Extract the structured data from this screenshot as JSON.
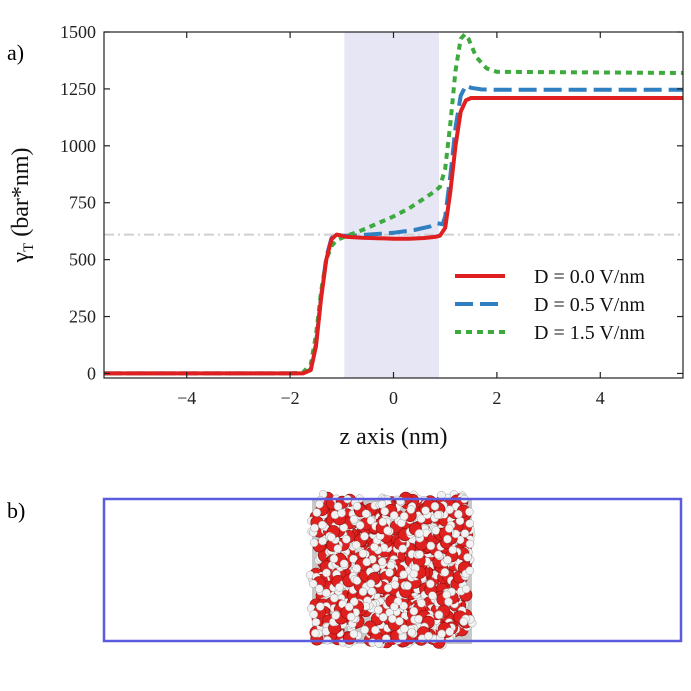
{
  "panel_a_label": "a)",
  "panel_b_label": "b)",
  "colors": {
    "D0": "#e02020",
    "D05": "#2f7fc1",
    "D15": "#3caa3c",
    "shade": "#e6e6f5",
    "reference": "#d0d0d0",
    "box": "#5b5be0",
    "oxygen": "#e0201e",
    "hydrogen": "#f2f2f2"
  },
  "chart_data": {
    "type": "line",
    "title": "",
    "xlabel": "z axis (nm)",
    "ylabel_main": "γ",
    "ylabel_sub": "T",
    "ylabel_rest": " (bar*nm)",
    "xlim": [
      -5.6,
      5.6
    ],
    "ylim": [
      -20,
      1500
    ],
    "xticks": [
      -4,
      -2,
      0,
      2,
      4
    ],
    "xtick_labels": [
      "−4",
      "−2",
      "0",
      "2",
      "4"
    ],
    "yticks": [
      0,
      250,
      500,
      750,
      1000,
      1250,
      1500
    ],
    "ytick_labels": [
      "0",
      "250",
      "500",
      "750",
      "1000",
      "1250",
      "1500"
    ],
    "shaded_region": [
      -0.95,
      0.88
    ],
    "reference_line_y": 610,
    "legend_position": "right-middle",
    "series": [
      {
        "name": "D = 0.0 V/nm",
        "key": "D0",
        "style": "solid",
        "points": [
          [
            -5.6,
            0
          ],
          [
            -2.0,
            0
          ],
          [
            -1.75,
            0
          ],
          [
            -1.6,
            15
          ],
          [
            -1.5,
            120
          ],
          [
            -1.4,
            330
          ],
          [
            -1.3,
            500
          ],
          [
            -1.2,
            590
          ],
          [
            -1.1,
            610
          ],
          [
            -1.0,
            605
          ],
          [
            -0.9,
            600
          ],
          [
            -0.6,
            596
          ],
          [
            -0.3,
            594
          ],
          [
            0.0,
            592
          ],
          [
            0.3,
            592
          ],
          [
            0.6,
            595
          ],
          [
            0.8,
            600
          ],
          [
            0.9,
            605
          ],
          [
            1.0,
            640
          ],
          [
            1.1,
            800
          ],
          [
            1.2,
            1000
          ],
          [
            1.3,
            1150
          ],
          [
            1.4,
            1200
          ],
          [
            1.5,
            1210
          ],
          [
            2.0,
            1210
          ],
          [
            5.6,
            1210
          ]
        ]
      },
      {
        "name": "D = 0.5 V/nm",
        "key": "D05",
        "style": "dashed",
        "points": [
          [
            -5.6,
            0
          ],
          [
            -2.0,
            0
          ],
          [
            -1.75,
            0
          ],
          [
            -1.6,
            18
          ],
          [
            -1.5,
            130
          ],
          [
            -1.4,
            340
          ],
          [
            -1.3,
            510
          ],
          [
            -1.2,
            595
          ],
          [
            -1.1,
            612
          ],
          [
            -1.0,
            605
          ],
          [
            -0.8,
            605
          ],
          [
            -0.5,
            610
          ],
          [
            0.0,
            618
          ],
          [
            0.4,
            630
          ],
          [
            0.7,
            645
          ],
          [
            0.85,
            660
          ],
          [
            0.95,
            655
          ],
          [
            1.0,
            690
          ],
          [
            1.1,
            870
          ],
          [
            1.2,
            1080
          ],
          [
            1.3,
            1220
          ],
          [
            1.4,
            1265
          ],
          [
            1.5,
            1255
          ],
          [
            1.7,
            1248
          ],
          [
            2.0,
            1246
          ],
          [
            5.6,
            1246
          ]
        ]
      },
      {
        "name": "D = 1.5 V/nm",
        "key": "D15",
        "style": "dotted",
        "points": [
          [
            -5.6,
            0
          ],
          [
            -2.0,
            0
          ],
          [
            -1.75,
            5
          ],
          [
            -1.6,
            40
          ],
          [
            -1.5,
            170
          ],
          [
            -1.4,
            360
          ],
          [
            -1.3,
            500
          ],
          [
            -1.2,
            560
          ],
          [
            -1.1,
            585
          ],
          [
            -0.9,
            605
          ],
          [
            -0.6,
            630
          ],
          [
            -0.3,
            660
          ],
          [
            0.0,
            690
          ],
          [
            0.3,
            725
          ],
          [
            0.6,
            770
          ],
          [
            0.8,
            800
          ],
          [
            0.9,
            820
          ],
          [
            1.0,
            900
          ],
          [
            1.1,
            1100
          ],
          [
            1.2,
            1330
          ],
          [
            1.3,
            1470
          ],
          [
            1.38,
            1490
          ],
          [
            1.45,
            1470
          ],
          [
            1.6,
            1390
          ],
          [
            1.8,
            1340
          ],
          [
            2.0,
            1325
          ],
          [
            5.6,
            1320
          ]
        ]
      }
    ]
  }
}
